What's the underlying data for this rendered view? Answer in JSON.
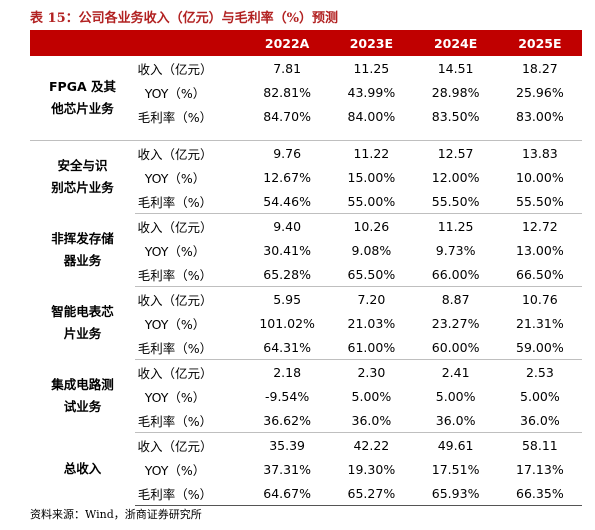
{
  "header": {
    "title": "表 15：公司各业务收入（亿元）与毛利率（%）预测"
  },
  "table": {
    "columns": [
      "2022A",
      "2023E",
      "2024E",
      "2025E"
    ],
    "groups": [
      {
        "label_lines": [
          "FPGA 及其",
          "他芯片业务"
        ],
        "rows": [
          [
            "收入（亿元）",
            "7.81",
            "11.25",
            "14.51",
            "18.27"
          ],
          [
            "YOY（%）",
            "82.81%",
            "43.99%",
            "28.98%",
            "25.96%"
          ],
          [
            "毛利率（%）",
            "84.70%",
            "84.00%",
            "83.50%",
            "83.00%"
          ]
        ]
      },
      {
        "label_lines": [
          "安全与识",
          "别芯片业务"
        ],
        "rows": [
          [
            "收入（亿元）",
            "9.76",
            "11.22",
            "12.57",
            "13.83"
          ],
          [
            "YOY（%）",
            "12.67%",
            "15.00%",
            "12.00%",
            "10.00%"
          ],
          [
            "毛利率（%）",
            "54.46%",
            "55.00%",
            "55.50%",
            "55.50%"
          ]
        ]
      },
      {
        "label_lines": [
          "非挥发存储",
          "器业务"
        ],
        "rows": [
          [
            "收入（亿元）",
            "9.40",
            "10.26",
            "11.25",
            "12.72"
          ],
          [
            "YOY（%）",
            "30.41%",
            "9.08%",
            "9.73%",
            "13.00%"
          ],
          [
            "毛利率（%）",
            "65.28%",
            "65.50%",
            "66.00%",
            "66.50%"
          ]
        ]
      },
      {
        "label_lines": [
          "智能电表芯",
          "片业务"
        ],
        "rows": [
          [
            "收入（亿元）",
            "5.95",
            "7.20",
            "8.87",
            "10.76"
          ],
          [
            "YOY（%）",
            "101.02%",
            "21.03%",
            "23.27%",
            "21.31%"
          ],
          [
            "毛利率（%）",
            "64.31%",
            "61.00%",
            "60.00%",
            "59.00%"
          ]
        ]
      },
      {
        "label_lines": [
          "集成电路测",
          "试业务"
        ],
        "rows": [
          [
            "收入（亿元）",
            "2.18",
            "2.30",
            "2.41",
            "2.53"
          ],
          [
            "YOY（%）",
            "-9.54%",
            "5.00%",
            "5.00%",
            "5.00%"
          ],
          [
            "毛利率（%）",
            "36.62%",
            "36.0%",
            "36.0%",
            "36.0%"
          ]
        ]
      },
      {
        "label_lines": [
          "总收入"
        ],
        "rows": [
          [
            "收入（亿元）",
            "35.39",
            "42.22",
            "49.61",
            "58.11"
          ],
          [
            "YOY（%）",
            "37.31%",
            "19.30%",
            "17.51%",
            "17.13%"
          ],
          [
            "毛利率（%）",
            "64.67%",
            "65.27%",
            "65.93%",
            "66.35%"
          ]
        ]
      }
    ]
  },
  "source": "资料来源：Wind，浙商证券研究所"
}
